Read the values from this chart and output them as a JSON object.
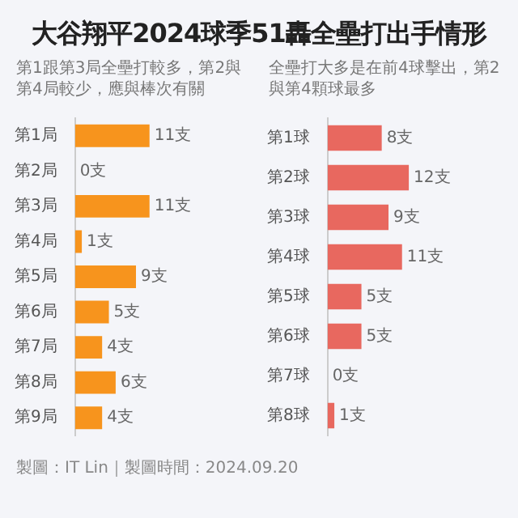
{
  "chart_data": [
    {
      "type": "bar",
      "title": "大谷翔平2024球季51轟全壘打出手情形",
      "subtitle": "第1跟第3局全壘打較多，第2與第4局較少，應與棒次有關",
      "orientation": "horizontal",
      "categories": [
        "第1局",
        "第2局",
        "第3局",
        "第4局",
        "第5局",
        "第6局",
        "第7局",
        "第8局",
        "第9局"
      ],
      "values": [
        11,
        0,
        11,
        1,
        9,
        5,
        4,
        6,
        4
      ],
      "value_labels": [
        "11支",
        "0支",
        "11支",
        "1支",
        "9支",
        "5支",
        "4支",
        "6支",
        "4支"
      ],
      "color": "#f7941d",
      "annotations": [
        "製圖：IT Lin｜製圖時間：2024.09.20"
      ]
    },
    {
      "type": "bar",
      "subtitle": "全壘打大多是在前4球擊出，第2與第4顆球最多",
      "orientation": "horizontal",
      "categories": [
        "第1球",
        "第2球",
        "第3球",
        "第4球",
        "第5球",
        "第6球",
        "第7球",
        "第8球"
      ],
      "values": [
        8,
        12,
        9,
        11,
        5,
        5,
        0,
        1
      ],
      "value_labels": [
        "8支",
        "12支",
        "9支",
        "11支",
        "5支",
        "5支",
        "0支",
        "1支"
      ],
      "color": "#e8685f"
    }
  ]
}
